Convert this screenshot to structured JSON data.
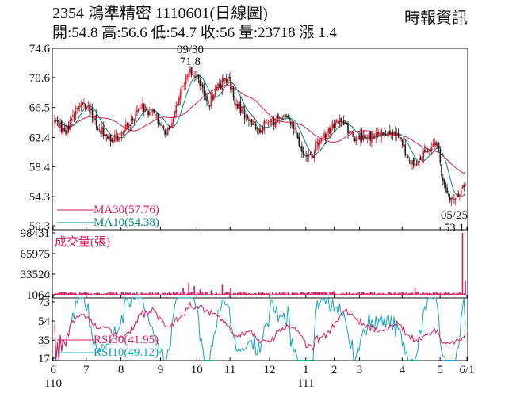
{
  "header": {
    "title": "2354  鴻準精密 1110601(日線圖)",
    "quote": "開:54.8 高:56.6 低:54.7 收:56 量:23718 漲 1.4",
    "source": "時報資訊"
  },
  "colors": {
    "up": "#e0162b",
    "down": "#1a1a1a",
    "ma30": "#d81b60",
    "ma10": "#00897b",
    "volume": "#d81b60",
    "rsi30": "#d81b60",
    "rsi10": "#12a5c4"
  },
  "chart_data": {
    "type": "candlestick",
    "price": {
      "ylim": [
        50.3,
        74.6
      ],
      "yticks": [
        "74.6",
        "70.6",
        "66.5",
        "62.4",
        "58.4",
        "54.3",
        "50.3"
      ],
      "annotations": [
        {
          "date": "09/30",
          "value": "71.8"
        },
        {
          "date": "05/25",
          "value": "53.1"
        }
      ],
      "legend": [
        {
          "key": "ma30",
          "label": "MA30(57.76)"
        },
        {
          "key": "ma10",
          "label": "MA10(54.38)"
        }
      ],
      "waypoints": [
        [
          0,
          64.8
        ],
        [
          8,
          62.9
        ],
        [
          16,
          66.5
        ],
        [
          24,
          66.8
        ],
        [
          32,
          63.5
        ],
        [
          42,
          62.0
        ],
        [
          52,
          64.0
        ],
        [
          62,
          66.5
        ],
        [
          72,
          65.5
        ],
        [
          80,
          63.0
        ],
        [
          86,
          66.0
        ],
        [
          92,
          69.5
        ],
        [
          97,
          71.8
        ],
        [
          104,
          69.5
        ],
        [
          110,
          67.0
        ],
        [
          118,
          69.5
        ],
        [
          124,
          70.5
        ],
        [
          130,
          67.0
        ],
        [
          138,
          65.0
        ],
        [
          146,
          63.5
        ],
        [
          154,
          64.5
        ],
        [
          162,
          65.0
        ],
        [
          170,
          64.3
        ],
        [
          176,
          61.0
        ],
        [
          184,
          59.8
        ],
        [
          190,
          62.0
        ],
        [
          198,
          63.8
        ],
        [
          206,
          64.5
        ],
        [
          214,
          62.5
        ],
        [
          222,
          62.3
        ],
        [
          230,
          63.0
        ],
        [
          238,
          62.8
        ],
        [
          246,
          62.5
        ],
        [
          252,
          60.0
        ],
        [
          258,
          58.5
        ],
        [
          266,
          60.5
        ],
        [
          270,
          61.0
        ],
        [
          274,
          61.5
        ],
        [
          278,
          56.5
        ],
        [
          282,
          54.5
        ],
        [
          286,
          53.8
        ],
        [
          290,
          54.6
        ],
        [
          294,
          56.0
        ]
      ],
      "ma30_last": 57.76,
      "ma10_last": 54.38
    },
    "volume": {
      "label": "成交量(張)",
      "yticks": [
        "98431",
        "65975",
        "33520",
        "1064"
      ],
      "ylim": [
        1064,
        98431
      ],
      "spikes": [
        [
          92,
          12000
        ],
        [
          96,
          20000
        ],
        [
          100,
          15000
        ],
        [
          104,
          9000
        ],
        [
          112,
          8000
        ],
        [
          120,
          18000
        ],
        [
          126,
          11000
        ],
        [
          200,
          7000
        ],
        [
          258,
          12000
        ],
        [
          292,
          98431
        ],
        [
          294,
          23718
        ]
      ]
    },
    "rsi": {
      "yticks": [
        "73",
        "54",
        "35",
        "17"
      ],
      "ylim": [
        17,
        73
      ],
      "legend": [
        {
          "key": "rsi30",
          "label": "RSI30(41.95)"
        },
        {
          "key": "rsi10",
          "label": "RSI10(49.12)"
        }
      ],
      "rsi30_last": 41.95,
      "rsi10_last": 49.12
    },
    "xaxis": {
      "labels": [
        {
          "label": "6",
          "day": 0
        },
        {
          "label": "7",
          "day": 21
        },
        {
          "label": "8",
          "day": 43
        },
        {
          "label": "9",
          "day": 68
        },
        {
          "label": "10",
          "day": 91
        },
        {
          "label": "11",
          "day": 112
        },
        {
          "label": "12",
          "day": 137
        },
        {
          "label": "1",
          "day": 160
        },
        {
          "label": "2",
          "day": 178
        },
        {
          "label": "3",
          "day": 194
        },
        {
          "label": "4",
          "day": 221
        },
        {
          "label": "5",
          "day": 245
        },
        {
          "label": "6/1",
          "day": 262
        }
      ],
      "year_labels": [
        {
          "label": "110",
          "day": 0
        },
        {
          "label": "111",
          "day": 160
        }
      ],
      "total_days": 263
    }
  }
}
